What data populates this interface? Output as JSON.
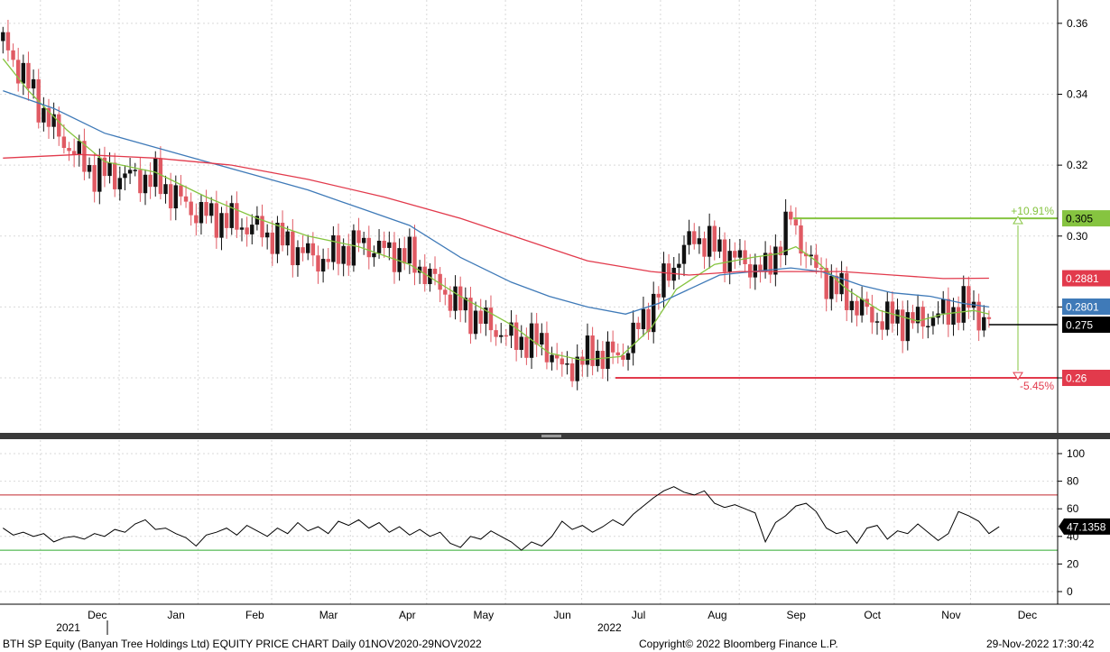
{
  "footer": {
    "title": "BTH SP Equity (Banyan Tree Holdings Ltd) EQUITY PRICE CHART  Daily 01NOV2020-29NOV2022",
    "copyright": "Copyright© 2022 Bloomberg Finance L.P.",
    "timestamp": "29-Nov-2022 17:30:42"
  },
  "colors": {
    "up": "#111111",
    "down": "#e05a63",
    "ma_green": "#86c440",
    "ma_blue": "#3f7ab8",
    "ma_red": "#e23a4c",
    "rsi_upper": "#c0282d",
    "rsi_lower": "#2faa2f"
  },
  "chart_data": [
    {
      "type": "candlestick",
      "panel": "price",
      "ylim": [
        0.245,
        0.362
      ],
      "y_ticks": [
        "0.36",
        "0.34",
        "0.32",
        "0.30",
        "0.28",
        "0.26"
      ],
      "x_months": [
        {
          "label": "Dec",
          "day": 30
        },
        {
          "label": "Jan",
          "day": 61
        },
        {
          "label": "Feb",
          "day": 92
        },
        {
          "label": "Mar",
          "day": 121
        },
        {
          "label": "Apr",
          "day": 152
        },
        {
          "label": "May",
          "day": 182
        },
        {
          "label": "Jun",
          "day": 213
        },
        {
          "label": "Jul",
          "day": 243
        },
        {
          "label": "Aug",
          "day": 274
        },
        {
          "label": "Sep",
          "day": 305
        },
        {
          "label": "Oct",
          "day": 335
        },
        {
          "label": "Nov",
          "day": 366
        },
        {
          "label": "Dec",
          "day": 396
        }
      ],
      "x_years": [
        {
          "label": "2021",
          "day": 15
        },
        {
          "label": "2022",
          "day": 228
        }
      ],
      "close_path": [
        [
          0,
          0.355
        ],
        [
          20,
          0.33
        ],
        [
          35,
          0.318
        ],
        [
          60,
          0.316
        ],
        [
          75,
          0.307
        ],
        [
          100,
          0.302
        ],
        [
          125,
          0.293
        ],
        [
          140,
          0.298
        ],
        [
          160,
          0.294
        ],
        [
          180,
          0.28
        ],
        [
          200,
          0.271
        ],
        [
          213,
          0.27
        ],
        [
          220,
          0.262
        ],
        [
          232,
          0.267
        ],
        [
          243,
          0.266
        ],
        [
          255,
          0.28
        ],
        [
          262,
          0.29
        ],
        [
          272,
          0.3
        ],
        [
          290,
          0.293
        ],
        [
          300,
          0.29
        ],
        [
          310,
          0.305
        ],
        [
          318,
          0.292
        ],
        [
          325,
          0.287
        ],
        [
          335,
          0.281
        ],
        [
          342,
          0.277
        ],
        [
          360,
          0.276
        ],
        [
          370,
          0.278
        ],
        [
          380,
          0.281
        ],
        [
          388,
          0.275
        ]
      ],
      "moving_averages": [
        {
          "color": "ma_green",
          "points": [
            [
              0,
              0.35
            ],
            [
              10,
              0.341
            ],
            [
              25,
              0.33
            ],
            [
              40,
              0.321
            ],
            [
              60,
              0.318
            ],
            [
              80,
              0.311
            ],
            [
              100,
              0.305
            ],
            [
              120,
              0.3
            ],
            [
              140,
              0.297
            ],
            [
              160,
              0.292
            ],
            [
              180,
              0.283
            ],
            [
              200,
              0.275
            ],
            [
              215,
              0.267
            ],
            [
              228,
              0.265
            ],
            [
              243,
              0.266
            ],
            [
              255,
              0.274
            ],
            [
              265,
              0.285
            ],
            [
              280,
              0.292
            ],
            [
              295,
              0.294
            ],
            [
              305,
              0.295
            ],
            [
              312,
              0.297
            ],
            [
              320,
              0.293
            ],
            [
              332,
              0.285
            ],
            [
              345,
              0.279
            ],
            [
              360,
              0.276
            ],
            [
              370,
              0.278
            ],
            [
              382,
              0.279
            ],
            [
              388,
              0.278
            ]
          ]
        },
        {
          "color": "ma_blue",
          "points": [
            [
              0,
              0.341
            ],
            [
              20,
              0.336
            ],
            [
              40,
              0.329
            ],
            [
              60,
              0.325
            ],
            [
              80,
              0.321
            ],
            [
              100,
              0.317
            ],
            [
              120,
              0.313
            ],
            [
              140,
              0.308
            ],
            [
              160,
              0.303
            ],
            [
              180,
              0.294
            ],
            [
              200,
              0.287
            ],
            [
              215,
              0.283
            ],
            [
              230,
              0.28
            ],
            [
              245,
              0.278
            ],
            [
              258,
              0.281
            ],
            [
              270,
              0.285
            ],
            [
              282,
              0.289
            ],
            [
              295,
              0.29
            ],
            [
              310,
              0.291
            ],
            [
              322,
              0.29
            ],
            [
              338,
              0.286
            ],
            [
              350,
              0.284
            ],
            [
              365,
              0.283
            ],
            [
              378,
              0.281
            ],
            [
              388,
              0.28
            ]
          ]
        },
        {
          "color": "ma_red",
          "points": [
            [
              0,
              0.322
            ],
            [
              30,
              0.323
            ],
            [
              60,
              0.322
            ],
            [
              90,
              0.32
            ],
            [
              120,
              0.316
            ],
            [
              150,
              0.311
            ],
            [
              180,
              0.305
            ],
            [
              205,
              0.299
            ],
            [
              230,
              0.293
            ],
            [
              255,
              0.29
            ],
            [
              270,
              0.289
            ],
            [
              290,
              0.29
            ],
            [
              310,
              0.29
            ],
            [
              330,
              0.29
            ],
            [
              350,
              0.289
            ],
            [
              370,
              0.288
            ],
            [
              388,
              0.2881
            ]
          ]
        }
      ],
      "levels": [
        {
          "value": 0.305,
          "label": "0.305",
          "change": "+10.91%",
          "color": "#86c440",
          "from_day": 311
        },
        {
          "value": 0.26,
          "label": "0.26",
          "change": "-5.45%",
          "color": "#e23a4c",
          "from_day": 241
        }
      ],
      "last_values": [
        {
          "label": "0.2881",
          "value": 0.2881,
          "color": "#e23a4c"
        },
        {
          "label": "0.2801",
          "value": 0.2801,
          "color": "#3f7ab8"
        },
        {
          "label": "0.275",
          "value": 0.275,
          "color": "#000000"
        }
      ]
    },
    {
      "type": "line",
      "panel": "rsi",
      "ylim": [
        -5,
        110
      ],
      "y_ticks": [
        "100",
        "80",
        "60",
        "40",
        "20",
        "0"
      ],
      "upper_band": 70,
      "lower_band": 30,
      "last_value": "47.1358",
      "points": [
        [
          0,
          46
        ],
        [
          4,
          41
        ],
        [
          8,
          43
        ],
        [
          12,
          40
        ],
        [
          16,
          42
        ],
        [
          20,
          36
        ],
        [
          24,
          39
        ],
        [
          28,
          40
        ],
        [
          32,
          38
        ],
        [
          36,
          42
        ],
        [
          40,
          40
        ],
        [
          44,
          45
        ],
        [
          48,
          43
        ],
        [
          52,
          49
        ],
        [
          56,
          52
        ],
        [
          60,
          45
        ],
        [
          64,
          46
        ],
        [
          68,
          42
        ],
        [
          72,
          39
        ],
        [
          76,
          33
        ],
        [
          80,
          41
        ],
        [
          84,
          43
        ],
        [
          88,
          46
        ],
        [
          92,
          41
        ],
        [
          96,
          48
        ],
        [
          100,
          44
        ],
        [
          104,
          40
        ],
        [
          108,
          46
        ],
        [
          112,
          42
        ],
        [
          116,
          50
        ],
        [
          120,
          44
        ],
        [
          124,
          47
        ],
        [
          128,
          42
        ],
        [
          132,
          51
        ],
        [
          136,
          48
        ],
        [
          140,
          52
        ],
        [
          144,
          46
        ],
        [
          148,
          50
        ],
        [
          152,
          43
        ],
        [
          156,
          47
        ],
        [
          160,
          41
        ],
        [
          164,
          45
        ],
        [
          168,
          40
        ],
        [
          172,
          43
        ],
        [
          176,
          35
        ],
        [
          180,
          32
        ],
        [
          184,
          40
        ],
        [
          188,
          38
        ],
        [
          192,
          44
        ],
        [
          196,
          40
        ],
        [
          200,
          36
        ],
        [
          204,
          30
        ],
        [
          208,
          36
        ],
        [
          212,
          33
        ],
        [
          216,
          40
        ],
        [
          220,
          51
        ],
        [
          224,
          45
        ],
        [
          228,
          48
        ],
        [
          232,
          43
        ],
        [
          236,
          47
        ],
        [
          240,
          52
        ],
        [
          244,
          48
        ],
        [
          248,
          56
        ],
        [
          252,
          62
        ],
        [
          256,
          68
        ],
        [
          260,
          73
        ],
        [
          264,
          76
        ],
        [
          268,
          72
        ],
        [
          272,
          70
        ],
        [
          276,
          73
        ],
        [
          280,
          64
        ],
        [
          284,
          61
        ],
        [
          288,
          63
        ],
        [
          292,
          60
        ],
        [
          296,
          57
        ],
        [
          300,
          36
        ],
        [
          304,
          50
        ],
        [
          308,
          55
        ],
        [
          312,
          62
        ],
        [
          316,
          64
        ],
        [
          320,
          58
        ],
        [
          324,
          46
        ],
        [
          328,
          42
        ],
        [
          332,
          44
        ],
        [
          336,
          35
        ],
        [
          340,
          46
        ],
        [
          344,
          48
        ],
        [
          348,
          38
        ],
        [
          352,
          44
        ],
        [
          356,
          42
        ],
        [
          360,
          49
        ],
        [
          364,
          43
        ],
        [
          368,
          37
        ],
        [
          372,
          42
        ],
        [
          376,
          58
        ],
        [
          380,
          55
        ],
        [
          384,
          51
        ],
        [
          388,
          42
        ],
        [
          392,
          47
        ]
      ]
    }
  ]
}
